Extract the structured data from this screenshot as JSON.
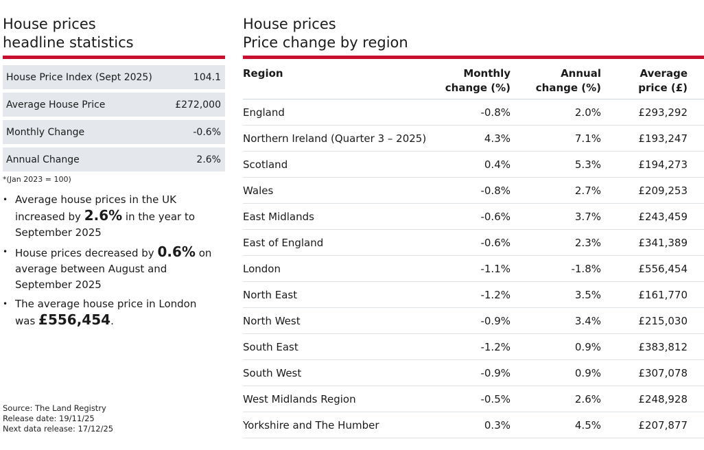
{
  "headline": {
    "title_line1": "House prices",
    "title_line2": "headline statistics",
    "stats": [
      {
        "label": "House Price Index (Sept 2025)",
        "value": "104.1"
      },
      {
        "label": "Average House Price",
        "value": "£272,000"
      },
      {
        "label": "Monthly Change",
        "value": "-0.6%"
      },
      {
        "label": "Annual Change",
        "value": "2.6%"
      }
    ],
    "footnote": "*(Jan 2023 = 100)",
    "bullets": [
      {
        "pre": "Average house prices in the UK increased by ",
        "bold": "2.6%",
        "post": " in the year to September 2025"
      },
      {
        "pre": "House prices decreased by ",
        "bold": "0.6%",
        "post": " on average between August and September 2025"
      },
      {
        "pre": "The average house price in London was ",
        "bold": "£556,454",
        "post": "."
      }
    ],
    "source": "Source: The Land Registry",
    "release_date": "Release date: 19/11/25",
    "next_release": "Next data release: 17/12/25"
  },
  "regions": {
    "title_line1": "House prices",
    "title_line2": "Price change by region",
    "columns": {
      "region": "Region",
      "monthly_1": "Monthly",
      "monthly_2": "change (%)",
      "annual_1": "Annual",
      "annual_2": "change (%)",
      "price_1": "Average",
      "price_2": "price (£)"
    },
    "rows": [
      {
        "region": "England",
        "monthly": "-0.8%",
        "annual": "2.0%",
        "price": "£293,292"
      },
      {
        "region": "Northern Ireland (Quarter 3 – 2025)",
        "monthly": "4.3%",
        "annual": "7.1%",
        "price": "£193,247"
      },
      {
        "region": "Scotland",
        "monthly": "0.4%",
        "annual": "5.3%",
        "price": "£194,273"
      },
      {
        "region": "Wales",
        "monthly": "-0.8%",
        "annual": "2.7%",
        "price": "£209,253"
      },
      {
        "region": "East Midlands",
        "monthly": "-0.6%",
        "annual": "3.7%",
        "price": "£243,459"
      },
      {
        "region": "East of England",
        "monthly": "-0.6%",
        "annual": "2.3%",
        "price": "£341,389"
      },
      {
        "region": "London",
        "monthly": "-1.1%",
        "annual": "-1.8%",
        "price": "£556,454"
      },
      {
        "region": "North East",
        "monthly": "-1.2%",
        "annual": "3.5%",
        "price": "£161,770"
      },
      {
        "region": "North West",
        "monthly": "-0.9%",
        "annual": "3.4%",
        "price": "£215,030"
      },
      {
        "region": "South East",
        "monthly": "-1.2%",
        "annual": "0.9%",
        "price": "£383,812"
      },
      {
        "region": "South West",
        "monthly": "-0.9%",
        "annual": "0.9%",
        "price": "£307,078"
      },
      {
        "region": "West Midlands Region",
        "monthly": "-0.5%",
        "annual": "2.6%",
        "price": "£248,928"
      },
      {
        "region": "Yorkshire and The Humber",
        "monthly": "0.3%",
        "annual": "4.5%",
        "price": "£207,877"
      }
    ]
  },
  "colors": {
    "accent": "#c8102e",
    "stat_bg": "#e4e8ec"
  }
}
